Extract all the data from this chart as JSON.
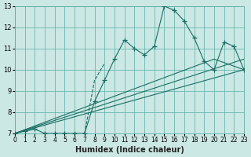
{
  "xlabel": "Humidex (Indice chaleur)",
  "bg_color": "#cce8e4",
  "grid_color": "#5aada5",
  "line_color": "#1a6e64",
  "xlim": [
    0,
    23
  ],
  "ylim": [
    7,
    13
  ],
  "xticks": [
    0,
    1,
    2,
    3,
    4,
    5,
    6,
    7,
    8,
    9,
    10,
    11,
    12,
    13,
    14,
    15,
    16,
    17,
    18,
    19,
    20,
    21,
    22,
    23
  ],
  "yticks": [
    7,
    8,
    9,
    10,
    11,
    12,
    13
  ],
  "series": [
    {
      "x": [
        0,
        1,
        2,
        3,
        4,
        5,
        6,
        7,
        8,
        9,
        10,
        11,
        12,
        13,
        14,
        15,
        16,
        17,
        18,
        19,
        20,
        21,
        22,
        23
      ],
      "y": [
        7.0,
        7.1,
        7.2,
        7.0,
        7.0,
        7.0,
        7.0,
        7.0,
        8.5,
        9.5,
        10.5,
        11.4,
        11.0,
        10.7,
        11.1,
        13.0,
        12.8,
        12.3,
        11.5,
        10.4,
        10.0,
        11.3,
        11.1,
        10.0
      ],
      "marker": true,
      "linestyle": "solid"
    },
    {
      "x": [
        7.0,
        8.0,
        9.0
      ],
      "y": [
        7.0,
        9.5,
        10.3
      ],
      "marker": false,
      "linestyle": "dashed"
    },
    {
      "x": [
        0,
        23
      ],
      "y": [
        7.0,
        10.0
      ],
      "marker": false,
      "linestyle": "solid"
    },
    {
      "x": [
        0,
        23
      ],
      "y": [
        7.0,
        10.5
      ],
      "marker": false,
      "linestyle": "solid"
    },
    {
      "x": [
        0,
        20,
        23
      ],
      "y": [
        7.0,
        10.5,
        10.0
      ],
      "marker": false,
      "linestyle": "solid"
    }
  ]
}
